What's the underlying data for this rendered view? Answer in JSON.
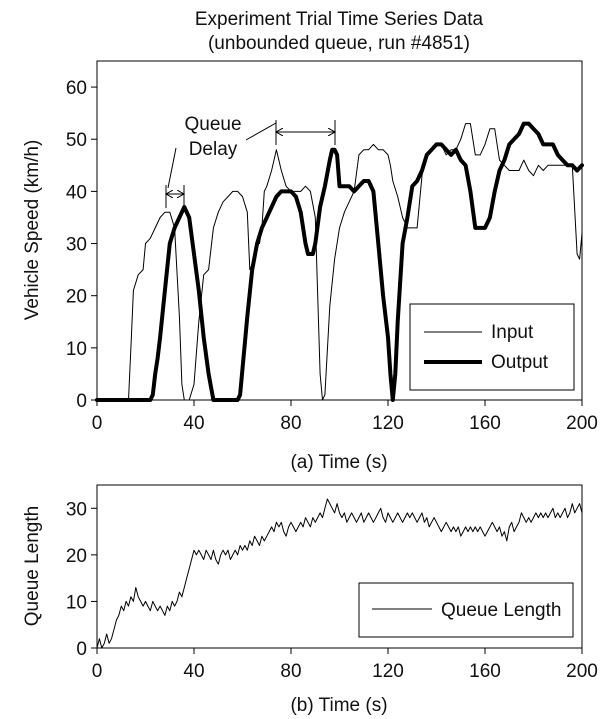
{
  "title_line1": "Experiment Trial Time Series Data",
  "title_line2": "(unbounded queue, run #4851)",
  "chart_data": [
    {
      "type": "line",
      "xlabel": "(a) Time (s)",
      "ylabel": "Vehicle Speed (km/h)",
      "xlim": [
        0,
        200
      ],
      "ylim": [
        0,
        65
      ],
      "xticks": [
        "0",
        "40",
        "80",
        "120",
        "160",
        "200"
      ],
      "yticks": [
        "0",
        "10",
        "20",
        "30",
        "40",
        "50",
        "60"
      ],
      "grid": false,
      "legend_position": "bottom-right",
      "annotation": {
        "line1": "Queue",
        "line2": "Delay"
      },
      "series": [
        {
          "name": "Input",
          "color": "#000000",
          "x": [
            0,
            13,
            14,
            15,
            17,
            19,
            20,
            22,
            24,
            26,
            28,
            30,
            32,
            34,
            35,
            36,
            38,
            40,
            42,
            44,
            46,
            48,
            50,
            52,
            54,
            56,
            58,
            60,
            62,
            63,
            64,
            65,
            66,
            67,
            68,
            69,
            70,
            72,
            74,
            76,
            78,
            80,
            82,
            84,
            86,
            88,
            90,
            92,
            93,
            94,
            96,
            98,
            100,
            102,
            104,
            106,
            108,
            110,
            112,
            114,
            116,
            118,
            120,
            121,
            122,
            124,
            126,
            128,
            130,
            132,
            134,
            136,
            138,
            140,
            142,
            144,
            146,
            148,
            150,
            152,
            154,
            156,
            158,
            160,
            162,
            164,
            166,
            168,
            170,
            172,
            174,
            176,
            178,
            180,
            182,
            184,
            186,
            188,
            190,
            192,
            194,
            196,
            198,
            199,
            200
          ],
          "y": [
            0,
            0,
            10,
            21,
            24,
            25,
            30,
            31,
            33,
            35,
            36,
            36,
            33,
            16,
            3,
            0,
            0,
            3,
            15,
            24,
            25,
            33,
            36,
            38,
            39,
            40,
            40,
            39,
            36,
            25,
            26,
            28,
            30,
            30,
            33,
            40,
            41,
            44,
            48,
            44,
            41,
            40,
            40,
            40,
            41,
            40,
            35,
            5,
            0,
            1,
            18,
            27,
            33,
            36,
            38,
            40,
            47,
            48,
            48,
            49,
            48,
            48,
            47,
            45,
            42,
            39,
            35,
            33,
            33,
            33,
            43,
            47,
            48,
            49,
            49,
            47,
            48,
            48,
            50,
            53,
            53,
            47,
            47,
            49,
            52,
            52,
            46,
            45,
            44,
            44,
            44,
            46,
            44,
            43,
            45,
            44,
            45,
            45,
            45,
            45,
            45,
            45,
            28,
            27,
            32
          ]
        },
        {
          "name": "Output",
          "color": "#000000",
          "x": [
            0,
            22,
            23,
            24,
            25,
            26,
            28,
            30,
            32,
            34,
            36,
            37,
            38,
            40,
            42,
            44,
            46,
            48,
            50,
            52,
            54,
            56,
            58,
            59,
            60,
            62,
            64,
            66,
            68,
            70,
            72,
            74,
            76,
            78,
            80,
            82,
            84,
            86,
            87,
            88,
            89,
            90,
            92,
            94,
            96,
            97,
            98,
            99,
            100,
            102,
            104,
            106,
            108,
            110,
            112,
            114,
            116,
            118,
            120,
            121,
            122,
            123,
            124,
            126,
            128,
            130,
            132,
            134,
            136,
            138,
            140,
            142,
            144,
            146,
            148,
            150,
            152,
            154,
            156,
            158,
            160,
            162,
            164,
            166,
            168,
            170,
            172,
            174,
            176,
            178,
            180,
            182,
            184,
            186,
            188,
            190,
            192,
            194,
            196,
            198,
            200
          ],
          "y": [
            0,
            0,
            1,
            5,
            8,
            12,
            21,
            30,
            33,
            35,
            37,
            36,
            35,
            28,
            21,
            12,
            5,
            0,
            0,
            0,
            0,
            0,
            0,
            1,
            6,
            16,
            25,
            30,
            33,
            35,
            37,
            39,
            40,
            40,
            40,
            39,
            36,
            30,
            28,
            28,
            28,
            30,
            37,
            41,
            46,
            48,
            48,
            47,
            41,
            41,
            41,
            40,
            41,
            42,
            42,
            40,
            30,
            20,
            12,
            5,
            0,
            5,
            15,
            30,
            35,
            41,
            42,
            44,
            47,
            48,
            49,
            49,
            48,
            47,
            48,
            46,
            45,
            40,
            33,
            33,
            33,
            35,
            40,
            44,
            46,
            49,
            50,
            51,
            53,
            53,
            52,
            51,
            49,
            49,
            49,
            47,
            46,
            45,
            45,
            44,
            45
          ]
        }
      ]
    },
    {
      "type": "line",
      "xlabel": "(b) Time (s)",
      "ylabel": "Queue Length",
      "xlim": [
        0,
        200
      ],
      "ylim": [
        0,
        35
      ],
      "xticks": [
        "0",
        "40",
        "80",
        "120",
        "160",
        "200"
      ],
      "yticks": [
        "0",
        "10",
        "20",
        "30"
      ],
      "grid": false,
      "legend_position": "bottom-right",
      "series": [
        {
          "name": "Queue Length",
          "color": "#000000",
          "x": [
            0,
            1,
            2,
            3,
            4,
            5,
            6,
            7,
            8,
            9,
            10,
            11,
            12,
            13,
            14,
            15,
            16,
            17,
            18,
            19,
            20,
            21,
            22,
            23,
            24,
            25,
            26,
            27,
            28,
            29,
            30,
            31,
            32,
            33,
            34,
            35,
            36,
            37,
            38,
            39,
            40,
            41,
            42,
            43,
            44,
            45,
            46,
            47,
            48,
            49,
            50,
            51,
            52,
            53,
            54,
            55,
            56,
            57,
            58,
            59,
            60,
            61,
            62,
            63,
            64,
            65,
            66,
            67,
            68,
            69,
            70,
            71,
            72,
            73,
            74,
            75,
            76,
            77,
            78,
            79,
            80,
            81,
            82,
            83,
            84,
            85,
            86,
            87,
            88,
            89,
            90,
            91,
            92,
            93,
            94,
            95,
            96,
            97,
            98,
            99,
            100,
            101,
            102,
            103,
            104,
            105,
            106,
            107,
            108,
            109,
            110,
            111,
            112,
            113,
            114,
            115,
            116,
            117,
            118,
            119,
            120,
            121,
            122,
            123,
            124,
            125,
            126,
            127,
            128,
            129,
            130,
            131,
            132,
            133,
            134,
            135,
            136,
            137,
            138,
            139,
            140,
            141,
            142,
            143,
            144,
            145,
            146,
            147,
            148,
            149,
            150,
            151,
            152,
            153,
            154,
            155,
            156,
            157,
            158,
            159,
            160,
            161,
            162,
            163,
            164,
            165,
            166,
            167,
            168,
            169,
            170,
            171,
            172,
            173,
            174,
            175,
            176,
            177,
            178,
            179,
            180,
            181,
            182,
            183,
            184,
            185,
            186,
            187,
            188,
            189,
            190,
            191,
            192,
            193,
            194,
            195,
            196,
            197,
            198,
            199,
            200
          ],
          "y": [
            0,
            2,
            0,
            1,
            3,
            1,
            2,
            4,
            6,
            7,
            9,
            8,
            10,
            9,
            11,
            10,
            13,
            11,
            10,
            9,
            10,
            9,
            8,
            10,
            9,
            8,
            9,
            8,
            7,
            9,
            8,
            10,
            9,
            10,
            12,
            11,
            13,
            15,
            17,
            19,
            21,
            20,
            21,
            20,
            19,
            21,
            20,
            19,
            21,
            19,
            18,
            20,
            21,
            20,
            21,
            19,
            20,
            21,
            20,
            22,
            21,
            22,
            21,
            23,
            22,
            24,
            23,
            22,
            24,
            23,
            24,
            25,
            26,
            25,
            27,
            26,
            27,
            25,
            24,
            26,
            27,
            26,
            25,
            26,
            27,
            26,
            28,
            27,
            26,
            28,
            27,
            28,
            29,
            28,
            30,
            32,
            31,
            30,
            29,
            31,
            29,
            28,
            29,
            27,
            28,
            29,
            28,
            27,
            28,
            29,
            27,
            28,
            29,
            28,
            27,
            28,
            29,
            30,
            28,
            27,
            29,
            28,
            27,
            28,
            29,
            28,
            27,
            28,
            29,
            28,
            29,
            28,
            27,
            28,
            29,
            27,
            28,
            26,
            27,
            28,
            27,
            26,
            25,
            26,
            27,
            26,
            25,
            26,
            25,
            26,
            24,
            25,
            26,
            25,
            26,
            25,
            26,
            25,
            26,
            25,
            24,
            25,
            26,
            27,
            26,
            25,
            26,
            24,
            25,
            23,
            26,
            27,
            25,
            26,
            27,
            29,
            28,
            27,
            28,
            27,
            28,
            29,
            28,
            29,
            28,
            29,
            28,
            29,
            30,
            28,
            29,
            28,
            29,
            30,
            28,
            29,
            31,
            29,
            30,
            31,
            29
          ]
        }
      ]
    }
  ]
}
